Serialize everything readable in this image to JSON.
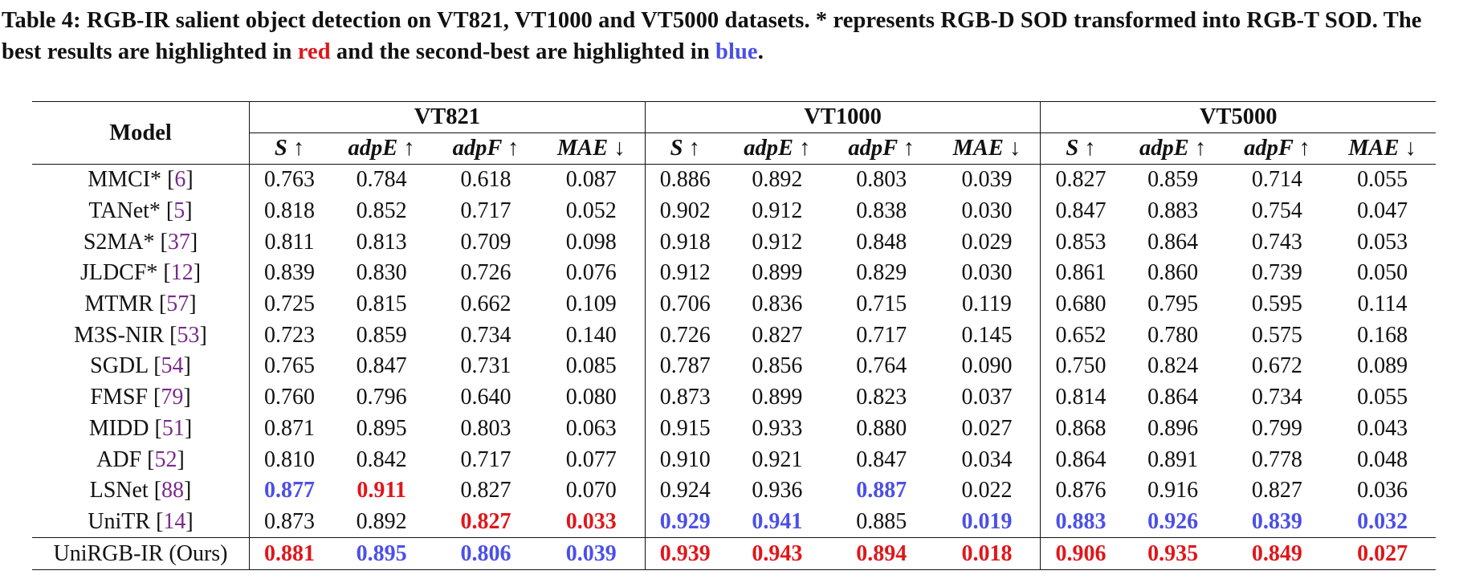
{
  "caption": {
    "part1": "Table 4: RGB-IR salient object detection on VT821, VT1000 and VT5000 datasets. * represents RGB-D SOD transformed into RGB-T SOD. The best results are highlighted in ",
    "red_word": "red",
    "part2": " and the second-best are highlighted in ",
    "blue_word": "blue",
    "part3": "."
  },
  "colors": {
    "best": "#e0161a",
    "second": "#4b4fe8",
    "citation": "#7a2a8c"
  },
  "header": {
    "model": "Model",
    "datasets": [
      "VT821",
      "VT1000",
      "VT5000"
    ],
    "metrics": [
      "S ↑",
      "adpE ↑",
      "adpF ↑",
      "MAE ↓"
    ]
  },
  "rows": [
    {
      "name": "MMCI*",
      "cite": "6",
      "values": [
        "0.763",
        "0.784",
        "0.618",
        "0.087",
        "0.886",
        "0.892",
        "0.803",
        "0.039",
        "0.827",
        "0.859",
        "0.714",
        "0.055"
      ],
      "marks": [
        "",
        "",
        "",
        "",
        "",
        "",
        "",
        "",
        "",
        "",
        "",
        ""
      ]
    },
    {
      "name": "TANet*",
      "cite": "5",
      "values": [
        "0.818",
        "0.852",
        "0.717",
        "0.052",
        "0.902",
        "0.912",
        "0.838",
        "0.030",
        "0.847",
        "0.883",
        "0.754",
        "0.047"
      ],
      "marks": [
        "",
        "",
        "",
        "",
        "",
        "",
        "",
        "",
        "",
        "",
        "",
        ""
      ]
    },
    {
      "name": "S2MA*",
      "cite": "37",
      "values": [
        "0.811",
        "0.813",
        "0.709",
        "0.098",
        "0.918",
        "0.912",
        "0.848",
        "0.029",
        "0.853",
        "0.864",
        "0.743",
        "0.053"
      ],
      "marks": [
        "",
        "",
        "",
        "",
        "",
        "",
        "",
        "",
        "",
        "",
        "",
        ""
      ]
    },
    {
      "name": "JLDCF*",
      "cite": "12",
      "values": [
        "0.839",
        "0.830",
        "0.726",
        "0.076",
        "0.912",
        "0.899",
        "0.829",
        "0.030",
        "0.861",
        "0.860",
        "0.739",
        "0.050"
      ],
      "marks": [
        "",
        "",
        "",
        "",
        "",
        "",
        "",
        "",
        "",
        "",
        "",
        ""
      ]
    },
    {
      "name": "MTMR",
      "cite": "57",
      "values": [
        "0.725",
        "0.815",
        "0.662",
        "0.109",
        "0.706",
        "0.836",
        "0.715",
        "0.119",
        "0.680",
        "0.795",
        "0.595",
        "0.114"
      ],
      "marks": [
        "",
        "",
        "",
        "",
        "",
        "",
        "",
        "",
        "",
        "",
        "",
        ""
      ]
    },
    {
      "name": "M3S-NIR",
      "cite": "53",
      "values": [
        "0.723",
        "0.859",
        "0.734",
        "0.140",
        "0.726",
        "0.827",
        "0.717",
        "0.145",
        "0.652",
        "0.780",
        "0.575",
        "0.168"
      ],
      "marks": [
        "",
        "",
        "",
        "",
        "",
        "",
        "",
        "",
        "",
        "",
        "",
        ""
      ]
    },
    {
      "name": "SGDL",
      "cite": "54",
      "values": [
        "0.765",
        "0.847",
        "0.731",
        "0.085",
        "0.787",
        "0.856",
        "0.764",
        "0.090",
        "0.750",
        "0.824",
        "0.672",
        "0.089"
      ],
      "marks": [
        "",
        "",
        "",
        "",
        "",
        "",
        "",
        "",
        "",
        "",
        "",
        ""
      ]
    },
    {
      "name": "FMSF",
      "cite": "79",
      "values": [
        "0.760",
        "0.796",
        "0.640",
        "0.080",
        "0.873",
        "0.899",
        "0.823",
        "0.037",
        "0.814",
        "0.864",
        "0.734",
        "0.055"
      ],
      "marks": [
        "",
        "",
        "",
        "",
        "",
        "",
        "",
        "",
        "",
        "",
        "",
        ""
      ]
    },
    {
      "name": "MIDD",
      "cite": "51",
      "values": [
        "0.871",
        "0.895",
        "0.803",
        "0.063",
        "0.915",
        "0.933",
        "0.880",
        "0.027",
        "0.868",
        "0.896",
        "0.799",
        "0.043"
      ],
      "marks": [
        "",
        "",
        "",
        "",
        "",
        "",
        "",
        "",
        "",
        "",
        "",
        ""
      ]
    },
    {
      "name": "ADF",
      "cite": "52",
      "values": [
        "0.810",
        "0.842",
        "0.717",
        "0.077",
        "0.910",
        "0.921",
        "0.847",
        "0.034",
        "0.864",
        "0.891",
        "0.778",
        "0.048"
      ],
      "marks": [
        "",
        "",
        "",
        "",
        "",
        "",
        "",
        "",
        "",
        "",
        "",
        ""
      ]
    },
    {
      "name": "LSNet",
      "cite": "88",
      "values": [
        "0.877",
        "0.911",
        "0.827",
        "0.070",
        "0.924",
        "0.936",
        "0.887",
        "0.022",
        "0.876",
        "0.916",
        "0.827",
        "0.036"
      ],
      "marks": [
        "second",
        "best",
        "",
        "",
        "",
        "",
        "second",
        "",
        "",
        "",
        "",
        ""
      ]
    },
    {
      "name": "UniTR",
      "cite": "14",
      "values": [
        "0.873",
        "0.892",
        "0.827",
        "0.033",
        "0.929",
        "0.941",
        "0.885",
        "0.019",
        "0.883",
        "0.926",
        "0.839",
        "0.032"
      ],
      "marks": [
        "",
        "",
        "best",
        "best",
        "second",
        "second",
        "",
        "second",
        "second",
        "second",
        "second",
        "second"
      ]
    }
  ],
  "ours": {
    "name": "UniRGB-IR (Ours)",
    "values": [
      "0.881",
      "0.895",
      "0.806",
      "0.039",
      "0.939",
      "0.943",
      "0.894",
      "0.018",
      "0.906",
      "0.935",
      "0.849",
      "0.027"
    ],
    "marks": [
      "best",
      "second",
      "second",
      "second",
      "best",
      "best",
      "best",
      "best",
      "best",
      "best",
      "best",
      "best"
    ]
  }
}
